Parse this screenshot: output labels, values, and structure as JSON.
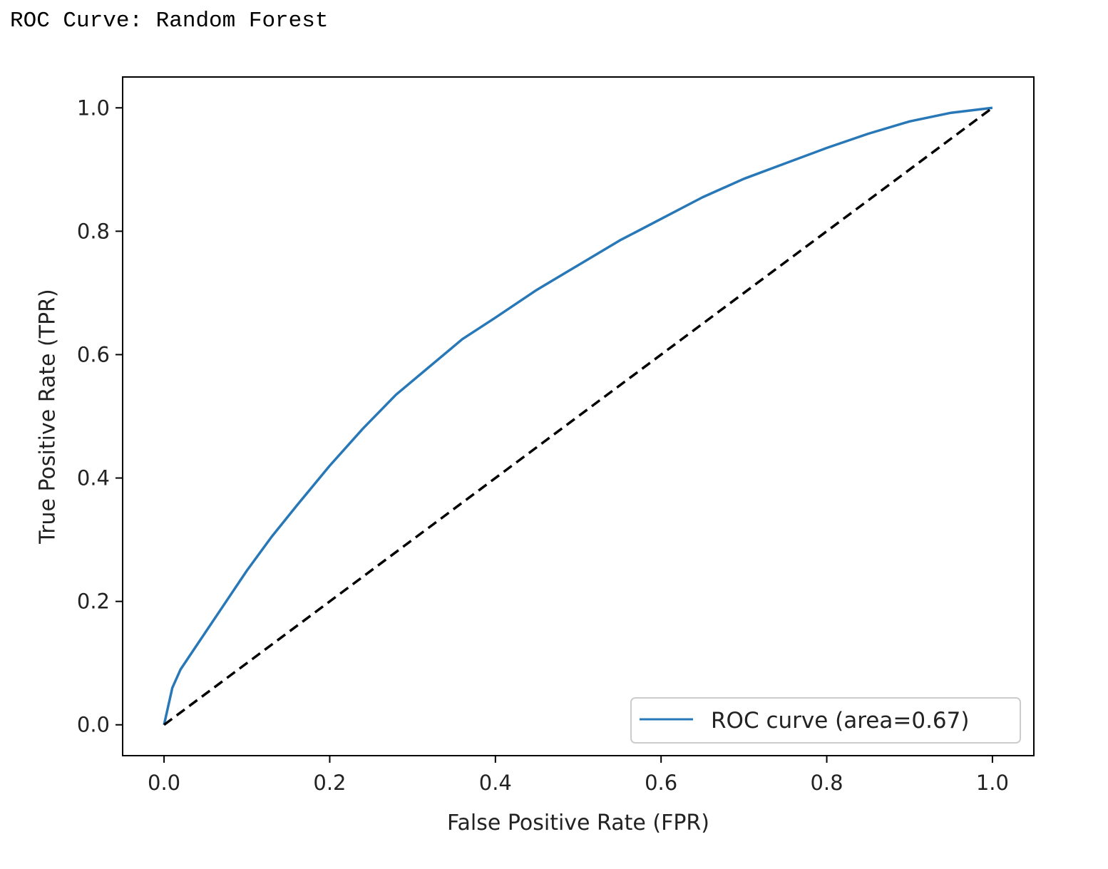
{
  "page": {
    "title": "ROC Curve: Random Forest"
  },
  "colors": {
    "roc_line": "#2878b8",
    "diagonal": "#000000",
    "frame": "#000000",
    "text": "#222222"
  },
  "chart_data": {
    "type": "line",
    "xlabel": "False Positive Rate (FPR)",
    "ylabel": "True Positive Rate (TPR)",
    "xlim": [
      -0.05,
      1.05
    ],
    "ylim": [
      -0.05,
      1.05
    ],
    "xticks": [
      "0.0",
      "0.2",
      "0.4",
      "0.6",
      "0.8",
      "1.0"
    ],
    "yticks": [
      "0.0",
      "0.2",
      "0.4",
      "0.6",
      "0.8",
      "1.0"
    ],
    "grid": false,
    "legend": {
      "placement": "lower-right",
      "entries": [
        "ROC curve (area=0.67)"
      ]
    },
    "series": [
      {
        "name": "ROC curve (area=0.67)",
        "style": "solid",
        "x": [
          0.0,
          0.005,
          0.01,
          0.02,
          0.03,
          0.05,
          0.07,
          0.1,
          0.13,
          0.16,
          0.2,
          0.24,
          0.28,
          0.32,
          0.36,
          0.4,
          0.45,
          0.5,
          0.55,
          0.6,
          0.65,
          0.7,
          0.75,
          0.8,
          0.85,
          0.9,
          0.95,
          1.0
        ],
        "y": [
          0.0,
          0.03,
          0.06,
          0.09,
          0.11,
          0.15,
          0.19,
          0.25,
          0.305,
          0.355,
          0.42,
          0.48,
          0.535,
          0.58,
          0.625,
          0.66,
          0.705,
          0.745,
          0.785,
          0.82,
          0.855,
          0.885,
          0.91,
          0.935,
          0.958,
          0.978,
          0.992,
          1.0
        ]
      },
      {
        "name": "",
        "style": "dashed",
        "x": [
          0.0,
          1.0
        ],
        "y": [
          0.0,
          1.0
        ]
      }
    ]
  }
}
